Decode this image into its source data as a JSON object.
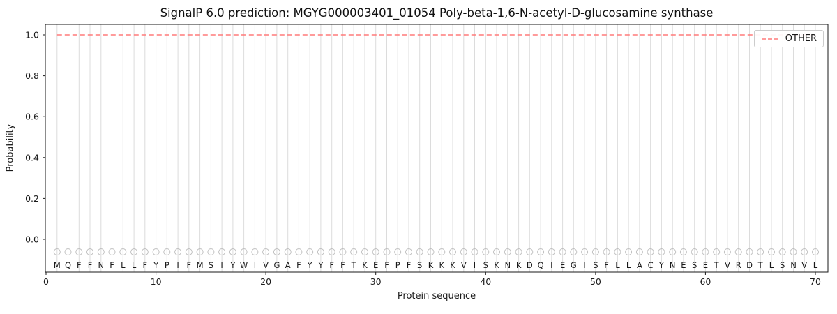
{
  "colors": {
    "other_line": "#ff7a7a",
    "grid": "#dcdcdc",
    "marker": "#bfbfbf",
    "spine": "#1a1a1a",
    "text": "#1a1a1a",
    "legend_border": "#cccccc"
  },
  "chart_data": {
    "type": "line",
    "title": "SignalP 6.0 prediction: MGYG000003401_01054 Poly-beta-1,6-N-acetyl-D-glucosamine synthase",
    "xlabel": "Protein sequence",
    "ylabel": "Probability",
    "xlim": [
      0,
      71
    ],
    "ylim": [
      -0.16,
      1.05
    ],
    "xticks": [
      0,
      10,
      20,
      30,
      40,
      50,
      60,
      70
    ],
    "yticks": [
      "0.0",
      "0.2",
      "0.4",
      "0.6",
      "0.8",
      "1.0"
    ],
    "grid": "vertical gridline at every residue position, no horizontal gridlines",
    "legend": {
      "position": "upper right",
      "entries": [
        {
          "label": "OTHER",
          "color": "#ff7a7a",
          "linestyle": "dashed"
        }
      ]
    },
    "sequence": "MQFFNFLLFYPIFMSIYWIVGAFYYFFTKEFPFSKKKVISKNKDQIEGISFLLACYNESETVRDTLSNVL",
    "marker_row": {
      "shape": "open-circle",
      "color": "#bfbfbf",
      "position": "below 0.0 line, one per residue"
    },
    "series": [
      {
        "name": "OTHER",
        "color": "#ff7a7a",
        "linestyle": "dashed",
        "x_start": 1,
        "values": [
          1.0,
          1.0,
          1.0,
          1.0,
          1.0,
          1.0,
          1.0,
          1.0,
          1.0,
          1.0,
          1.0,
          1.0,
          1.0,
          1.0,
          1.0,
          1.0,
          1.0,
          1.0,
          1.0,
          1.0,
          1.0,
          1.0,
          1.0,
          1.0,
          1.0,
          1.0,
          1.0,
          1.0,
          1.0,
          1.0,
          1.0,
          1.0,
          1.0,
          1.0,
          1.0,
          1.0,
          1.0,
          1.0,
          1.0,
          1.0,
          1.0,
          1.0,
          1.0,
          1.0,
          1.0,
          1.0,
          1.0,
          1.0,
          1.0,
          1.0,
          1.0,
          1.0,
          1.0,
          1.0,
          1.0,
          1.0,
          1.0,
          1.0,
          1.0,
          1.0,
          1.0,
          1.0,
          1.0,
          1.0,
          1.0,
          1.0,
          1.0,
          1.0,
          1.0,
          1.0
        ]
      }
    ]
  }
}
